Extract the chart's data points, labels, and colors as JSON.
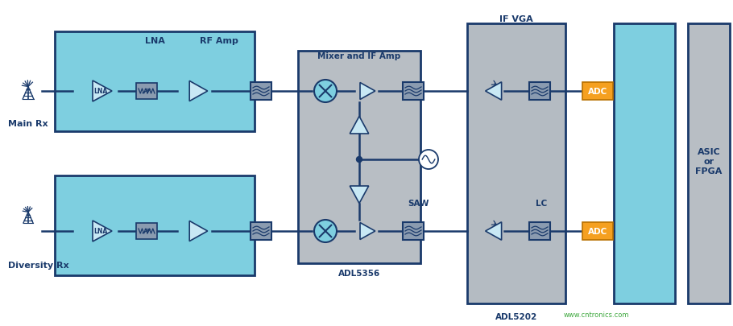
{
  "bg_color": "#ffffff",
  "light_blue": "#7ECFE0",
  "dark_blue": "#1A3A6B",
  "gray_block": "#B8BEC4",
  "orange": "#F5A020",
  "amp_fill": "#C8E8F4",
  "filter_col": "#8A9BB0",
  "labels": {
    "main_rx": "Main Rx",
    "diversity_rx": "Diversity Rx",
    "lna": "LNA",
    "rf_amp": "RF Amp",
    "mixer_if": "Mixer and IF Amp",
    "if_vga": "IF VGA",
    "saw": "SAW",
    "lc": "LC",
    "adl5356": "ADL5356",
    "adl5202": "ADL5202",
    "adc": "ADC",
    "asic_fpga": "ASIC\nor\nFPGA",
    "watermark": "www.cntronics.com"
  }
}
